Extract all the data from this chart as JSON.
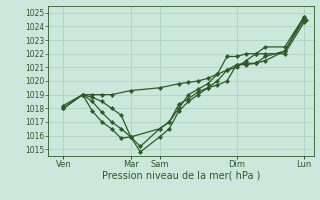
{
  "xlabel": "Pression niveau de la mer( hPa )",
  "ylim": [
    1014.5,
    1025.5
  ],
  "xlim": [
    -0.3,
    13.5
  ],
  "yticks": [
    1015,
    1016,
    1017,
    1018,
    1019,
    1020,
    1021,
    1022,
    1023,
    1024,
    1025
  ],
  "background_color": "#cce8dc",
  "grid_color": "#b0d8c8",
  "line_color": "#2d5a27",
  "xtick_labels": [
    "Ven",
    "Mar",
    "Sam",
    "Dim",
    "Lun"
  ],
  "xtick_positions": [
    0.5,
    4.0,
    5.5,
    9.5,
    13.0
  ],
  "xvlines": [
    0.5,
    4.0,
    5.5,
    9.5,
    13.0
  ],
  "series": [
    {
      "x": [
        0.5,
        1.5,
        2.0,
        2.5,
        3.0,
        4.0,
        5.5,
        6.5,
        7.0,
        7.5,
        8.0,
        8.5,
        9.0,
        9.5,
        10.0,
        10.5,
        11.0,
        12.0,
        13.0
      ],
      "y": [
        1018.0,
        1019.0,
        1019.0,
        1019.0,
        1019.0,
        1019.3,
        1019.5,
        1019.8,
        1019.9,
        1020.0,
        1020.2,
        1020.5,
        1020.8,
        1021.2,
        1021.2,
        1021.3,
        1021.5,
        1022.2,
        1024.7
      ]
    },
    {
      "x": [
        0.5,
        1.5,
        2.0,
        2.5,
        3.0,
        3.5,
        4.0,
        5.5,
        6.0,
        6.5,
        7.0,
        7.5,
        8.0,
        8.5,
        9.0,
        9.5,
        10.0,
        10.5,
        11.0,
        12.0,
        13.0
      ],
      "y": [
        1018.0,
        1019.0,
        1018.8,
        1018.5,
        1018.0,
        1017.5,
        1015.9,
        1016.5,
        1017.0,
        1018.3,
        1018.7,
        1019.2,
        1019.5,
        1019.7,
        1020.0,
        1021.2,
        1021.3,
        1021.3,
        1021.8,
        1022.2,
        1024.5
      ]
    },
    {
      "x": [
        0.5,
        1.5,
        2.0,
        2.5,
        3.0,
        3.5,
        4.0,
        4.5,
        5.5,
        6.0,
        6.5,
        7.0,
        7.5,
        8.0,
        8.5,
        9.0,
        9.5,
        10.0,
        10.5,
        11.0,
        12.0,
        13.0
      ],
      "y": [
        1018.2,
        1019.0,
        1018.5,
        1017.7,
        1017.0,
        1016.5,
        1015.9,
        1015.2,
        1016.5,
        1017.0,
        1018.0,
        1019.0,
        1019.4,
        1019.8,
        1020.5,
        1021.8,
        1021.8,
        1022.0,
        1022.0,
        1022.5,
        1022.5,
        1024.7
      ]
    },
    {
      "x": [
        0.5,
        1.5,
        2.0,
        2.5,
        3.0,
        3.5,
        4.0,
        4.5,
        5.5,
        6.0,
        6.5,
        7.0,
        7.5,
        8.0,
        8.5,
        9.0,
        9.5,
        10.0,
        10.5,
        11.0,
        12.0,
        13.0,
        13.1
      ],
      "y": [
        1018.0,
        1019.0,
        1017.8,
        1017.0,
        1016.5,
        1015.8,
        1015.9,
        1014.8,
        1015.9,
        1016.5,
        1017.8,
        1018.5,
        1019.0,
        1019.5,
        1020.0,
        1020.8,
        1021.0,
        1021.5,
        1022.0,
        1022.0,
        1022.0,
        1024.3,
        1024.5
      ]
    }
  ]
}
